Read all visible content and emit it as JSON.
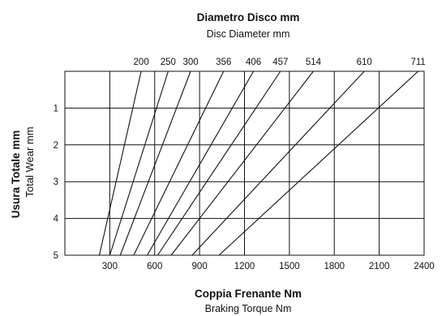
{
  "chart_data": {
    "type": "line",
    "title": "Diametro Disco  mm",
    "subtitle": "Disc Diameter  mm",
    "xlabel": "Coppia Frenante  Nm",
    "xlabel_sub": "Braking Torque  Nm",
    "ylabel": "Usura Totale  mm",
    "ylabel_sub": "Total Wear  mm",
    "xlim": [
      0,
      2400
    ],
    "ylim": [
      0,
      5
    ],
    "y_inverted": true,
    "grid": true,
    "xticks": [
      "300",
      "600",
      "900",
      "1200",
      "1500",
      "1800",
      "2100",
      "2400"
    ],
    "yticks": [
      "1",
      "2",
      "3",
      "4",
      "5"
    ],
    "series": [
      {
        "name": "200",
        "x": [
          510,
          230
        ],
        "y": [
          0,
          5
        ]
      },
      {
        "name": "250",
        "x": [
          690,
          300
        ],
        "y": [
          0,
          5
        ]
      },
      {
        "name": "300",
        "x": [
          840,
          370
        ],
        "y": [
          0,
          5
        ]
      },
      {
        "name": "356",
        "x": [
          1060,
          460
        ],
        "y": [
          0,
          5
        ]
      },
      {
        "name": "406",
        "x": [
          1260,
          550
        ],
        "y": [
          0,
          5
        ]
      },
      {
        "name": "457",
        "x": [
          1440,
          620
        ],
        "y": [
          0,
          5
        ]
      },
      {
        "name": "514",
        "x": [
          1660,
          710
        ],
        "y": [
          0,
          5
        ]
      },
      {
        "name": "610",
        "x": [
          2000,
          850
        ],
        "y": [
          0,
          5
        ]
      },
      {
        "name": "711",
        "x": [
          2360,
          1030
        ],
        "y": [
          0,
          5
        ]
      }
    ]
  }
}
